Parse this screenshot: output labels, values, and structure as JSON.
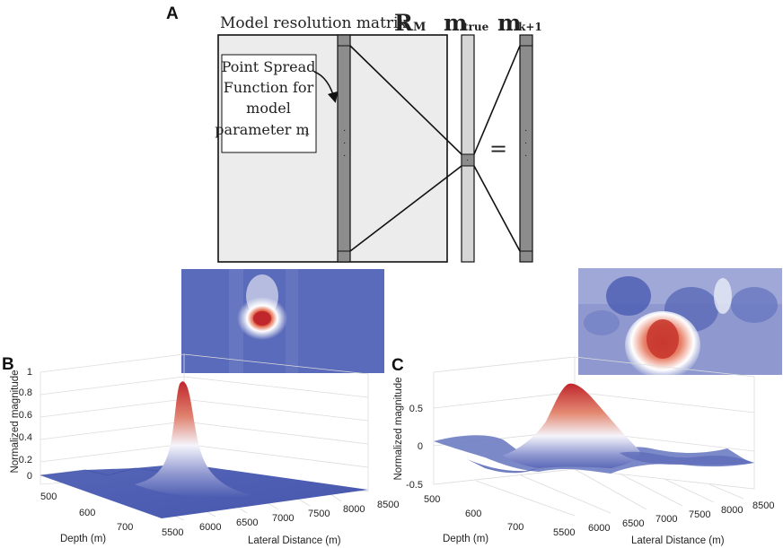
{
  "panels": {
    "a": {
      "letter": "A",
      "title_prefix": "Model resolution matrix",
      "title_symbol": "R",
      "title_sub": "M",
      "m_true": "m",
      "m_true_sub": "true",
      "m_next": "m",
      "m_next_sub": "k+1",
      "equals": "=",
      "psf_lines": [
        "Point Spread",
        "Function for",
        "model",
        "parameter m"
      ],
      "psf_sub": "i",
      "dots": "·\n·\n·"
    },
    "b": {
      "letter": "B",
      "zlabel": "Normalized magnitude",
      "xlabel": "Lateral Distance (m)",
      "ylabel": "Depth (m)",
      "z_ticks": [
        "1",
        "0.8",
        "0.6",
        "0.4",
        "0.2",
        "0"
      ],
      "depth_ticks": [
        "500",
        "600",
        "700"
      ],
      "lateral_ticks": [
        "5500",
        "6000",
        "6500",
        "7000",
        "7500",
        "8000",
        "8500"
      ],
      "peak_value": 0.92
    },
    "c": {
      "letter": "C",
      "zlabel": "Normalized magnitude",
      "xlabel": "Lateral Distance (m)",
      "ylabel": "Depth (m)",
      "z_ticks": [
        "0.5",
        "0",
        "-0.5"
      ],
      "depth_ticks": [
        "500",
        "600",
        "700"
      ],
      "lateral_ticks": [
        "5500",
        "6000",
        "6500",
        "7000",
        "7500",
        "8000",
        "8500"
      ],
      "peak_value": 0.75
    },
    "colors": {
      "red": "#c0272d",
      "white": "#f4f4fb",
      "blue": "#4a5bb0",
      "matrix_fill": "#ececec",
      "column_fill": "#8c8c8c",
      "vector_fill": "#d6d6d6"
    }
  }
}
